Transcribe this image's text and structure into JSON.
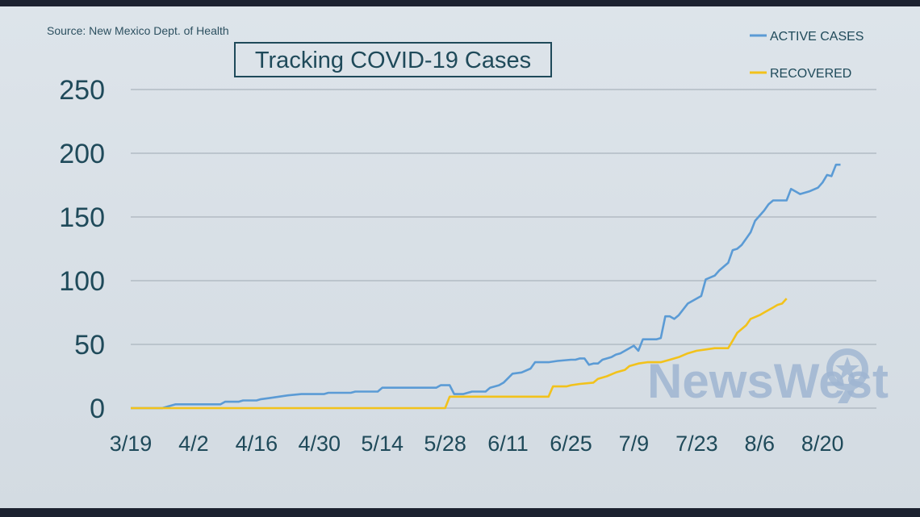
{
  "chart_data": {
    "type": "line",
    "title": "Tracking COVID-19 Cases",
    "source": "Source: New Mexico Dept. of Health",
    "xlabel": "",
    "ylabel": "",
    "x_ticks": [
      "3/19",
      "4/2",
      "4/16",
      "4/30",
      "5/14",
      "5/28",
      "6/11",
      "6/25",
      "7/9",
      "7/23",
      "8/6",
      "8/20"
    ],
    "x_tick_days": [
      0,
      14,
      28,
      42,
      56,
      70,
      84,
      98,
      112,
      126,
      140,
      154
    ],
    "xlim": [
      0,
      166
    ],
    "y_ticks": [
      0,
      50,
      100,
      150,
      200,
      250
    ],
    "ylim": [
      0,
      250
    ],
    "grid": "horizontal",
    "legend_position": "top-right",
    "series": [
      {
        "name": "ACTIVE CASES",
        "color": "#5b9bd5",
        "points": [
          [
            0,
            0
          ],
          [
            7,
            0
          ],
          [
            8,
            1
          ],
          [
            10,
            3
          ],
          [
            20,
            3
          ],
          [
            21,
            5
          ],
          [
            24,
            5
          ],
          [
            25,
            6
          ],
          [
            28,
            6
          ],
          [
            29,
            7
          ],
          [
            31,
            8
          ],
          [
            33,
            9
          ],
          [
            35,
            10
          ],
          [
            38,
            11
          ],
          [
            40,
            11
          ],
          [
            43,
            11
          ],
          [
            44,
            12
          ],
          [
            49,
            12
          ],
          [
            50,
            13
          ],
          [
            55,
            13
          ],
          [
            56,
            16
          ],
          [
            63,
            16
          ],
          [
            68,
            16
          ],
          [
            69,
            18
          ],
          [
            71,
            18
          ],
          [
            72,
            11
          ],
          [
            74,
            11
          ],
          [
            75,
            12
          ],
          [
            76,
            13
          ],
          [
            79,
            13
          ],
          [
            80,
            16
          ],
          [
            82,
            18
          ],
          [
            83,
            20
          ],
          [
            85,
            27
          ],
          [
            87,
            28
          ],
          [
            89,
            31
          ],
          [
            90,
            36
          ],
          [
            93,
            36
          ],
          [
            95,
            37
          ],
          [
            98,
            38
          ],
          [
            99,
            38
          ],
          [
            100,
            39
          ],
          [
            101,
            39
          ],
          [
            102,
            34
          ],
          [
            103,
            35
          ],
          [
            104,
            35
          ],
          [
            105,
            38
          ],
          [
            107,
            40
          ],
          [
            108,
            42
          ],
          [
            109,
            43
          ],
          [
            111,
            47
          ],
          [
            112,
            49
          ],
          [
            113,
            45
          ],
          [
            114,
            54
          ],
          [
            117,
            54
          ],
          [
            118,
            55
          ],
          [
            119,
            72
          ],
          [
            120,
            72
          ],
          [
            121,
            70
          ],
          [
            122,
            73
          ],
          [
            124,
            82
          ],
          [
            126,
            86
          ],
          [
            127,
            88
          ],
          [
            128,
            101
          ],
          [
            130,
            104
          ],
          [
            131,
            108
          ],
          [
            132,
            111
          ],
          [
            133,
            114
          ],
          [
            134,
            124
          ],
          [
            135,
            125
          ],
          [
            136,
            128
          ],
          [
            137,
            133
          ],
          [
            138,
            138
          ],
          [
            139,
            147
          ],
          [
            140,
            151
          ],
          [
            141,
            155
          ],
          [
            142,
            160
          ],
          [
            143,
            163
          ],
          [
            146,
            163
          ],
          [
            147,
            172
          ],
          [
            148,
            170
          ],
          [
            149,
            168
          ],
          [
            151,
            170
          ],
          [
            153,
            173
          ],
          [
            154,
            177
          ],
          [
            155,
            183
          ],
          [
            156,
            182
          ],
          [
            157,
            191
          ],
          [
            158,
            191
          ]
        ],
        "values_note_unused": ""
      },
      {
        "name": "RECOVERED",
        "color": "#f2c21b",
        "points": [
          [
            0,
            0
          ],
          [
            70,
            0
          ],
          [
            71,
            9
          ],
          [
            74,
            9
          ],
          [
            84,
            9
          ],
          [
            93,
            9
          ],
          [
            94,
            17
          ],
          [
            97,
            17
          ],
          [
            98,
            18
          ],
          [
            100,
            19
          ],
          [
            103,
            20
          ],
          [
            104,
            23
          ],
          [
            106,
            25
          ],
          [
            108,
            28
          ],
          [
            110,
            30
          ],
          [
            111,
            33
          ],
          [
            113,
            35
          ],
          [
            115,
            36
          ],
          [
            118,
            36
          ],
          [
            120,
            38
          ],
          [
            122,
            40
          ],
          [
            124,
            43
          ],
          [
            126,
            45
          ],
          [
            128,
            46
          ],
          [
            130,
            47
          ],
          [
            131,
            47
          ],
          [
            133,
            47
          ],
          [
            134,
            53
          ],
          [
            135,
            59
          ],
          [
            137,
            65
          ],
          [
            138,
            70
          ],
          [
            140,
            73
          ],
          [
            141,
            75
          ],
          [
            143,
            79
          ],
          [
            144,
            81
          ],
          [
            145,
            82
          ],
          [
            146,
            86
          ]
        ]
      }
    ]
  },
  "legend": {
    "active_label": "ACTIVE CASES",
    "recovered_label": "RECOVERED"
  },
  "logo": {
    "text": "NewsWest"
  },
  "colors": {
    "active": "#5b9bd5",
    "recovered": "#f2c21b",
    "text": "#1f4a5a"
  }
}
